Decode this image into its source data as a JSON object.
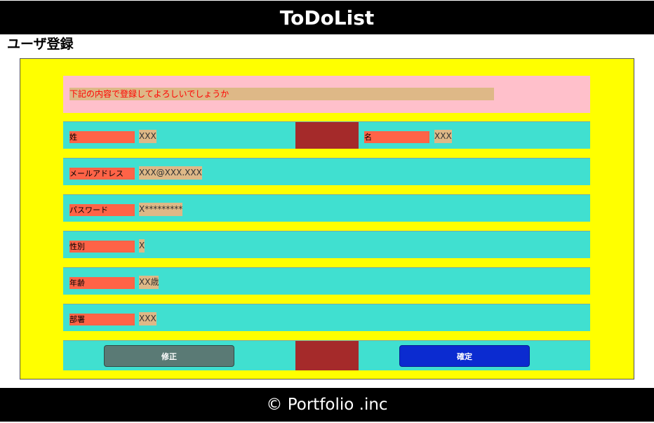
{
  "header": {
    "title": "ToDoList"
  },
  "page": {
    "title": "ユーザ登録"
  },
  "confirm": {
    "message": "下記の内容で登録してよろしいでしょうか"
  },
  "fields": {
    "last_name": {
      "label": "姓",
      "value": "XXX"
    },
    "first_name": {
      "label": "名",
      "value": "XXX"
    },
    "email": {
      "label": "メールアドレス",
      "value": "XXX@XXX.XXX"
    },
    "password": {
      "label": "パスワード",
      "value": "X*********"
    },
    "gender": {
      "label": "性別",
      "value": "X"
    },
    "age": {
      "label": "年齢",
      "value": "XX歳"
    },
    "department": {
      "label": "部署",
      "value": "XXX"
    }
  },
  "actions": {
    "edit_label": "修正",
    "confirm_label": "確定"
  },
  "footer": {
    "text": "© Portfolio .inc"
  },
  "colors": {
    "header_bg": "#000000",
    "panel_bg": "#ffff00",
    "confirm_bg": "#ffc0cb",
    "row_bg": "#40e0d0",
    "label_bg": "#ff6347",
    "value_bg": "#deb887",
    "divider": "#a52a2a",
    "edit_button": "#5a7a75",
    "confirm_button": "#0b2bd0"
  }
}
